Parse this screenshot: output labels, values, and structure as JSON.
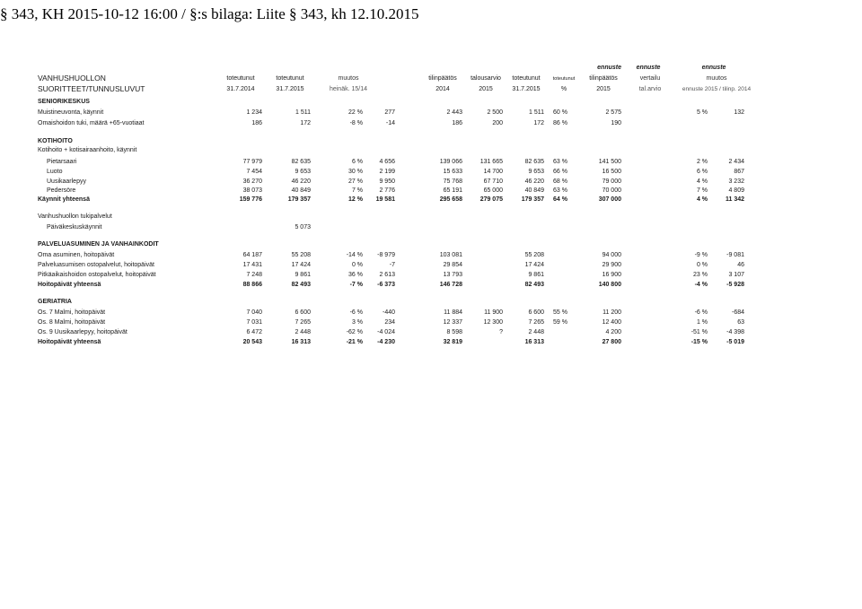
{
  "header": {
    "title": "§ 343, KH 2015-10-12 16:00 / §:s bilaga: Liite § 343, kh 12.10.2015"
  },
  "table_header": {
    "row1": {
      "label": "VANHUSHUOLLON",
      "c1": "toteutunut",
      "c2": "toteutunut",
      "c3": "muutos",
      "c5": "tilinpäätös",
      "c6": "talousarvio",
      "c7": "toteutunut",
      "c7b": "toteutunut",
      "c8": "tilinpäätös",
      "c9": "vertailu",
      "c11": "muutos"
    },
    "row0": {
      "c8": "ennuste",
      "c9": "ennuste",
      "c11": "ennuste"
    },
    "row2": {
      "label": "SUORITTEET/TUNNUSLUVUT",
      "c1": "31.7.2014",
      "c2": "31.7.2015",
      "c3": "heinäk. 15/14",
      "c5": "2014",
      "c6": "2015",
      "c7": "31.7.2015",
      "c7b": "%",
      "c8": "2015",
      "c9": "tal.arvio",
      "c11": "ennuste 2015 / tilinp. 2014"
    }
  },
  "rows": [
    {
      "label": "SENIORIKESKUS",
      "bold": true
    },
    {
      "label": "Muistineuvonta, käynnit",
      "c1": "1 234",
      "c2": "1 511",
      "c3": "22 %",
      "c4": "277",
      "c5": "2 443",
      "c6": "2 500",
      "c7": "1 511",
      "c7b": "60 %",
      "c8": "2 575",
      "c10": "5 %",
      "c11": "132"
    },
    {
      "label": "Omaishoidon tuki, määrä +65-vuotiaat",
      "c1": "186",
      "c2": "172",
      "c3": "-8 %",
      "c4": "-14",
      "c5": "186",
      "c6": "200",
      "c7": "172",
      "c7b": "86 %",
      "c8": "190"
    },
    {
      "label": "KOTIHOITO",
      "bold": true
    },
    {
      "label": "Kotihoito + kotisairaanhoito, käynnit"
    },
    {
      "label": "Pietarsaari",
      "indent": true,
      "c1": "77 979",
      "c2": "82 635",
      "c3": "6 %",
      "c4": "4 656",
      "c5": "139 066",
      "c6": "131 665",
      "c7": "82 635",
      "c7b": "63 %",
      "c8": "141 500",
      "c10": "2 %",
      "c11": "2 434"
    },
    {
      "label": "Luoto",
      "indent": true,
      "c1": "7 454",
      "c2": "9 653",
      "c3": "30 %",
      "c4": "2 199",
      "c5": "15 633",
      "c6": "14 700",
      "c7": "9 653",
      "c7b": "66 %",
      "c8": "16 500",
      "c10": "6 %",
      "c11": "867"
    },
    {
      "label": "Uusikaarlepyy",
      "indent": true,
      "c1": "36 270",
      "c2": "46 220",
      "c3": "27 %",
      "c4": "9 950",
      "c5": "75 768",
      "c6": "67 710",
      "c7": "46 220",
      "c7b": "68 %",
      "c8": "79 000",
      "c10": "4 %",
      "c11": "3 232"
    },
    {
      "label": "Pedersöre",
      "indent": true,
      "c1": "38 073",
      "c2": "40 849",
      "c3": "7 %",
      "c4": "2 776",
      "c5": "65 191",
      "c6": "65 000",
      "c7": "40 849",
      "c7b": "63 %",
      "c8": "70 000",
      "c10": "7 %",
      "c11": "4 809"
    },
    {
      "label": "Käynnit yhteensä",
      "bold": true,
      "c1": "159 776",
      "c2": "179 357",
      "c3": "12 %",
      "c4": "19 581",
      "c5": "295 658",
      "c6": "279 075",
      "c7": "179 357",
      "c7b": "64 %",
      "c8": "307 000",
      "c10": "4 %",
      "c11": "11 342"
    },
    {
      "label": "Vanhushuollon tukipalvelut"
    },
    {
      "label": "Päiväkeskuskäynnit",
      "indent": true,
      "c2": "5 073"
    },
    {
      "label": "PALVELUASUMINEN JA VANHAINKODIT",
      "bold": true
    },
    {
      "label": "Oma asuminen, hoitopäivät",
      "c1": "64 187",
      "c2": "55 208",
      "c3": "-14 %",
      "c4": "-8 979",
      "c5": "103 081",
      "c7": "55 208",
      "c8": "94 000",
      "c10": "-9 %",
      "c11": "-9 081"
    },
    {
      "label": "Palveluasumisen ostopalvelut, hoitopäivät",
      "c1": "17 431",
      "c2": "17 424",
      "c3": "0 %",
      "c4": "-7",
      "c5": "29 854",
      "c7": "17 424",
      "c8": "29 900",
      "c10": "0 %",
      "c11": "46"
    },
    {
      "label": "Pitkäaikaishoidon ostopalvelut, hoitopäivät",
      "c1": "7 248",
      "c2": "9 861",
      "c3": "36 %",
      "c4": "2 613",
      "c5": "13 793",
      "c7": "9 861",
      "c8": "16 900",
      "c10": "23 %",
      "c11": "3 107"
    },
    {
      "label": "Hoitopäivät yhteensä",
      "bold": true,
      "c1": "88 866",
      "c2": "82 493",
      "c3": "-7 %",
      "c4": "-6 373",
      "c5": "146 728",
      "c7": "82 493",
      "c8": "140 800",
      "c10": "-4 %",
      "c11": "-5 928"
    },
    {
      "label": "GERIATRIA",
      "bold": true
    },
    {
      "label": "Os. 7 Malmi, hoitopäivät",
      "c1": "7 040",
      "c2": "6 600",
      "c3": "-6 %",
      "c4": "-440",
      "c5": "11 884",
      "c6": "11 900",
      "c7": "6 600",
      "c7b": "55 %",
      "c8": "11 200",
      "c10": "-6 %",
      "c11": "-684"
    },
    {
      "label": "Os. 8 Malmi, hoitopäivät",
      "c1": "7 031",
      "c2": "7 265",
      "c3": "3 %",
      "c4": "234",
      "c5": "12 337",
      "c6": "12 300",
      "c7": "7 265",
      "c7b": "59 %",
      "c8": "12 400",
      "c10": "1 %",
      "c11": "63"
    },
    {
      "label": "Os. 9 Uusikaarlepyy, hoitopäivät",
      "c1": "6 472",
      "c2": "2 448",
      "c3": "-62 %",
      "c4": "-4 024",
      "c5": "8 598",
      "c6": "?",
      "c7": "2 448",
      "c8": "4 200",
      "c10": "-51 %",
      "c11": "-4 398"
    },
    {
      "label": "Hoitopäivät yhteensä",
      "bold": true,
      "c1": "20 543",
      "c2": "16 313",
      "c3": "-21 %",
      "c4": "-4 230",
      "c5": "32 819",
      "c7": "16 313",
      "c8": "27 800",
      "c10": "-15 %",
      "c11": "-5 019"
    }
  ]
}
